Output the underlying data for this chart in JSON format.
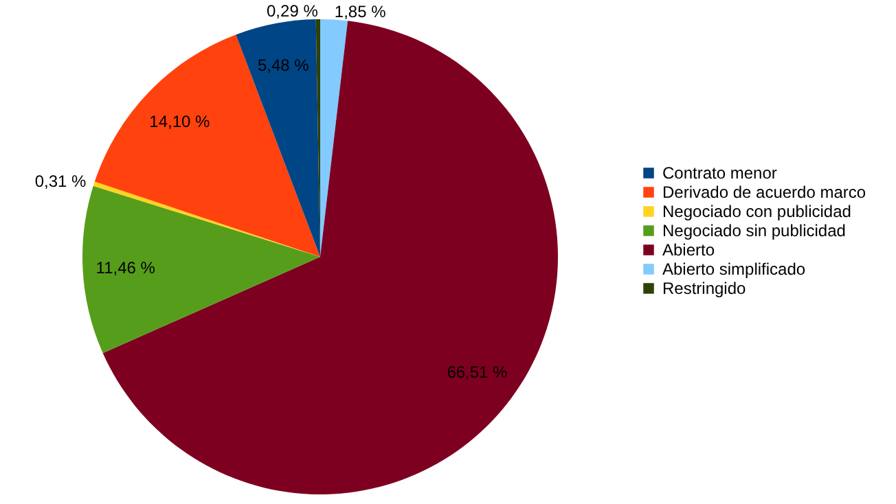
{
  "chart_data": {
    "type": "pie",
    "categories": [
      "Contrato menor",
      "Derivado de acuerdo marco",
      "Negociado con publicidad",
      "Negociado sin publicidad",
      "Abierto",
      "Abierto simplificado",
      "Restringido"
    ],
    "values": [
      5.48,
      14.1,
      0.31,
      11.46,
      66.51,
      1.85,
      0.29
    ],
    "colors": [
      "#004586",
      "#ff420e",
      "#ffd320",
      "#579d1c",
      "#7e0021",
      "#83caff",
      "#314004"
    ],
    "value_labels": [
      "5,48 %",
      "14,10 %",
      "0,31 %",
      "11,46 %",
      "66,51 %",
      "1,85 %",
      "0,29 %"
    ],
    "legend": "right"
  }
}
